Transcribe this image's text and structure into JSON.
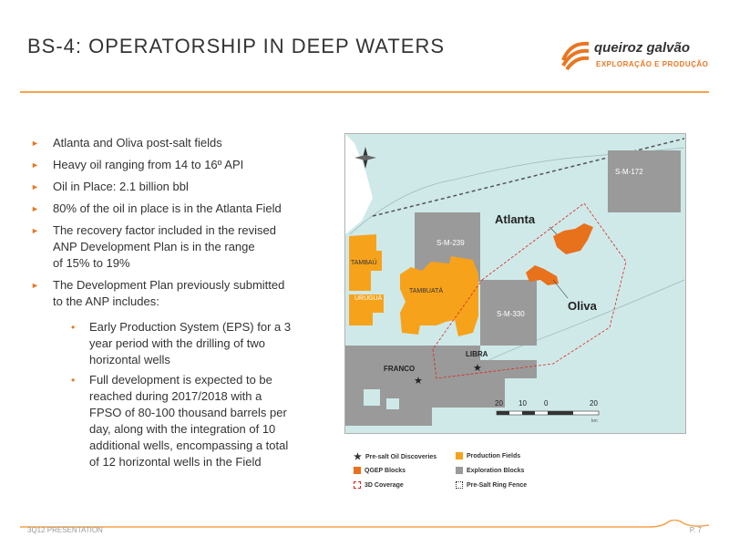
{
  "header": {
    "title": "BS-4: OPERATORSHIP IN DEEP WATERS",
    "logo_name": "queiroz galvão",
    "logo_sub": "EXPLORAÇÃO E PRODUÇÃO"
  },
  "bullets": [
    "Atlanta and Oliva post-salt fields",
    "Heavy oil ranging from 14 to 16º API",
    "Oil in Place: 2.1 billion bbl",
    "80% of the oil in place is in the Atlanta Field",
    "The recovery factor included in the revised\nANP Development Plan is in the range\nof 15% to 19%",
    "The Development Plan previously submitted\nto the ANP includes:"
  ],
  "sub_bullets": [
    "Early Production System (EPS) for a 3\nyear period with the drilling of two\nhorizontal wells",
    "Full development is expected to be\nreached during 2017/2018 with a\nFPSO of 80-100 thousand barrels per\nday, along with the integration of 10\nadditional wells, encompassing a total\nof 12 horizontal wells in the Field"
  ],
  "map": {
    "labels": {
      "sm172": "S-M-172",
      "sm239": "S-M-239",
      "sm330": "S-M-330",
      "tambau": "TAMBAÚ",
      "tambuata": "TAMBUATÁ",
      "urugua": "URUGUÁ",
      "franco": "FRANCO",
      "libra": "LIBRA",
      "atlanta": "Atlanta",
      "oliva": "Oliva"
    },
    "scale": [
      "20",
      "10",
      "0",
      "20"
    ],
    "scale_unit": "km",
    "colors": {
      "sea": "#cfe9e9",
      "exploration": "#9a9a9a",
      "production": "#f7a21b",
      "qgep": "#e8711c"
    }
  },
  "legend": {
    "presalt": "Pre-salt Oil Discoveries",
    "production": "Production Fields",
    "qgep": "QGEP Blocks",
    "exploration": "Exploration Blocks",
    "coverage": "3D Coverage",
    "ringfence": "Pre-Salt Ring Fence"
  },
  "footer": {
    "left": "3Q12 PRESENTATION",
    "right": "P. 7"
  }
}
